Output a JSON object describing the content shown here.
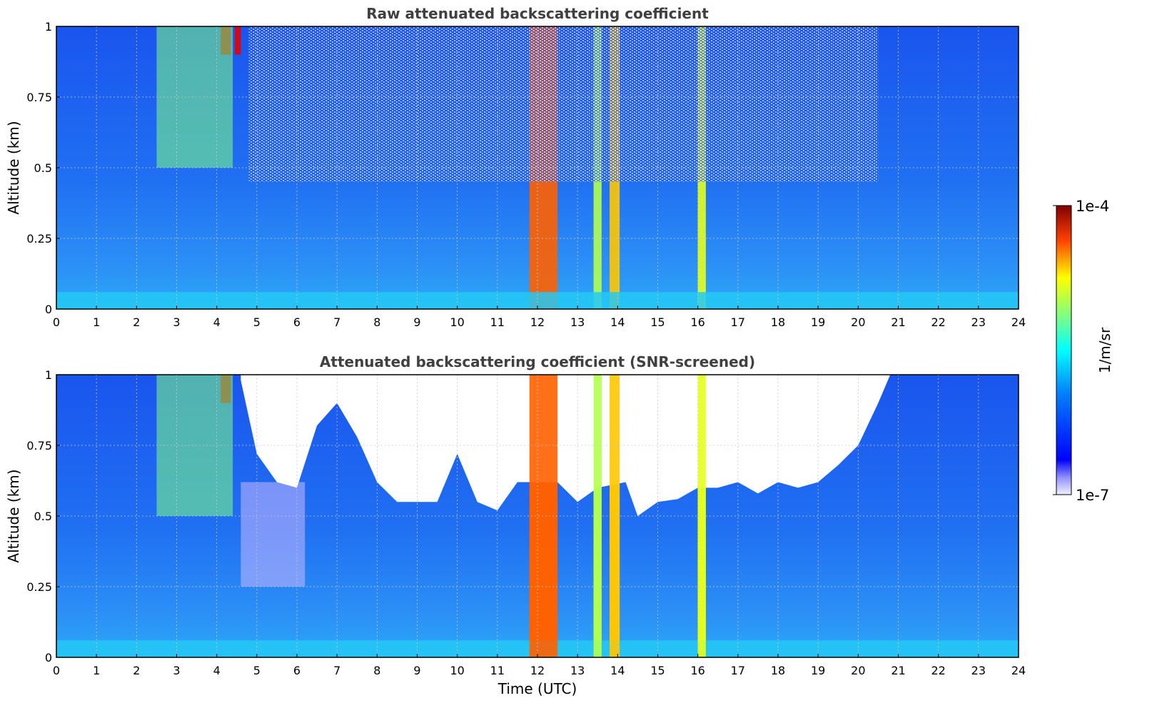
{
  "figure": {
    "xlabel": "Time (UTC)",
    "colorbar": {
      "label": "1/m/sr",
      "max_label": "1e-4",
      "min_label": "1e-7",
      "scale": "log",
      "colormap": "jet"
    }
  },
  "colors": {
    "background_field": "#1e6cf0",
    "field_mid": "#2f86f5",
    "near_surface": "#2aa8f8",
    "surface_band": "#25c9f5",
    "screened_out": "#ffffff",
    "title": "#404040",
    "grid": "#c8c8c8",
    "axis": "#000000"
  },
  "chart_data": [
    {
      "type": "heatmap",
      "title": "Raw attenuated backscattering coefficient",
      "xlabel": "",
      "ylabel": "Altitude (km)",
      "xlim": [
        0,
        24
      ],
      "ylim": [
        0,
        1
      ],
      "x_ticks": [
        "0",
        "1",
        "2",
        "3",
        "4",
        "5",
        "6",
        "7",
        "8",
        "9",
        "10",
        "11",
        "12",
        "13",
        "14",
        "15",
        "16",
        "17",
        "18",
        "19",
        "20",
        "21",
        "22",
        "23",
        "24"
      ],
      "y_ticks": [
        "0",
        "0.25",
        "0.5",
        "0.75",
        "1"
      ],
      "grid": true,
      "features": [
        {
          "kind": "column",
          "t_start": 11.8,
          "t_end": 12.5,
          "level": 0.78
        },
        {
          "kind": "column",
          "t_start": 13.8,
          "t_end": 14.05,
          "level": 0.68
        },
        {
          "kind": "column",
          "t_start": 13.4,
          "t_end": 13.6,
          "level": 0.55
        },
        {
          "kind": "column",
          "t_start": 16.0,
          "t_end": 16.2,
          "level": 0.6
        },
        {
          "kind": "column",
          "t_start": 4.1,
          "t_end": 4.35,
          "level": 0.95,
          "alt_from": 0.9
        },
        {
          "kind": "column",
          "t_start": 4.45,
          "t_end": 4.6,
          "level": 0.9,
          "alt_from": 0.9
        },
        {
          "kind": "plume",
          "t_start": 2.5,
          "t_end": 4.4,
          "alt_from": 0.5,
          "alt_to": 1.0,
          "level": 0.5
        },
        {
          "kind": "noise",
          "t_start": 4.8,
          "t_end": 20.5,
          "alt_from": 0.45,
          "alt_to": 1.0
        },
        {
          "kind": "surface_band",
          "alt_from": 0.0,
          "alt_to": 0.06,
          "level": 0.45
        }
      ]
    },
    {
      "type": "heatmap",
      "title": "Attenuated backscattering coefficient (SNR-screened)",
      "xlabel": "Time (UTC)",
      "ylabel": "Altitude (km)",
      "xlim": [
        0,
        24
      ],
      "ylim": [
        0,
        1
      ],
      "x_ticks": [
        "0",
        "1",
        "2",
        "3",
        "4",
        "5",
        "6",
        "7",
        "8",
        "9",
        "10",
        "11",
        "12",
        "13",
        "14",
        "15",
        "16",
        "17",
        "18",
        "19",
        "20",
        "21",
        "22",
        "23",
        "24"
      ],
      "y_ticks": [
        "0",
        "0.25",
        "0.5",
        "0.75",
        "1"
      ],
      "grid": true,
      "screened_boundary": {
        "time": [
          4.6,
          5.0,
          5.5,
          6.0,
          6.5,
          7.0,
          7.5,
          8.0,
          8.5,
          9.0,
          9.5,
          10.0,
          10.5,
          11.0,
          11.5,
          12.5,
          13.0,
          13.5,
          14.2,
          14.5,
          15.0,
          15.5,
          16.0,
          16.5,
          17.0,
          17.5,
          18.0,
          18.5,
          19.0,
          19.5,
          20.0,
          20.5,
          20.8
        ],
        "altitude": [
          0.98,
          0.72,
          0.62,
          0.6,
          0.82,
          0.9,
          0.78,
          0.62,
          0.55,
          0.55,
          0.55,
          0.72,
          0.55,
          0.52,
          0.62,
          0.62,
          0.55,
          0.6,
          0.62,
          0.5,
          0.55,
          0.56,
          0.6,
          0.6,
          0.62,
          0.58,
          0.62,
          0.6,
          0.62,
          0.68,
          0.75,
          0.9,
          1.0
        ]
      },
      "features": [
        {
          "kind": "column",
          "t_start": 11.8,
          "t_end": 12.5,
          "level": 0.78
        },
        {
          "kind": "column",
          "t_start": 13.8,
          "t_end": 14.05,
          "level": 0.68
        },
        {
          "kind": "column",
          "t_start": 13.4,
          "t_end": 13.6,
          "level": 0.55
        },
        {
          "kind": "column",
          "t_start": 16.0,
          "t_end": 16.2,
          "level": 0.6
        },
        {
          "kind": "column",
          "t_start": 4.1,
          "t_end": 4.35,
          "level": 0.95,
          "alt_from": 0.9
        },
        {
          "kind": "plume",
          "t_start": 2.5,
          "t_end": 4.4,
          "alt_from": 0.5,
          "alt_to": 1.0,
          "level": 0.5
        },
        {
          "kind": "low_patch",
          "t_start": 4.6,
          "t_end": 6.2,
          "alt_from": 0.25,
          "alt_to": 0.62
        },
        {
          "kind": "surface_band",
          "alt_from": 0.0,
          "alt_to": 0.06,
          "level": 0.45
        }
      ]
    }
  ]
}
